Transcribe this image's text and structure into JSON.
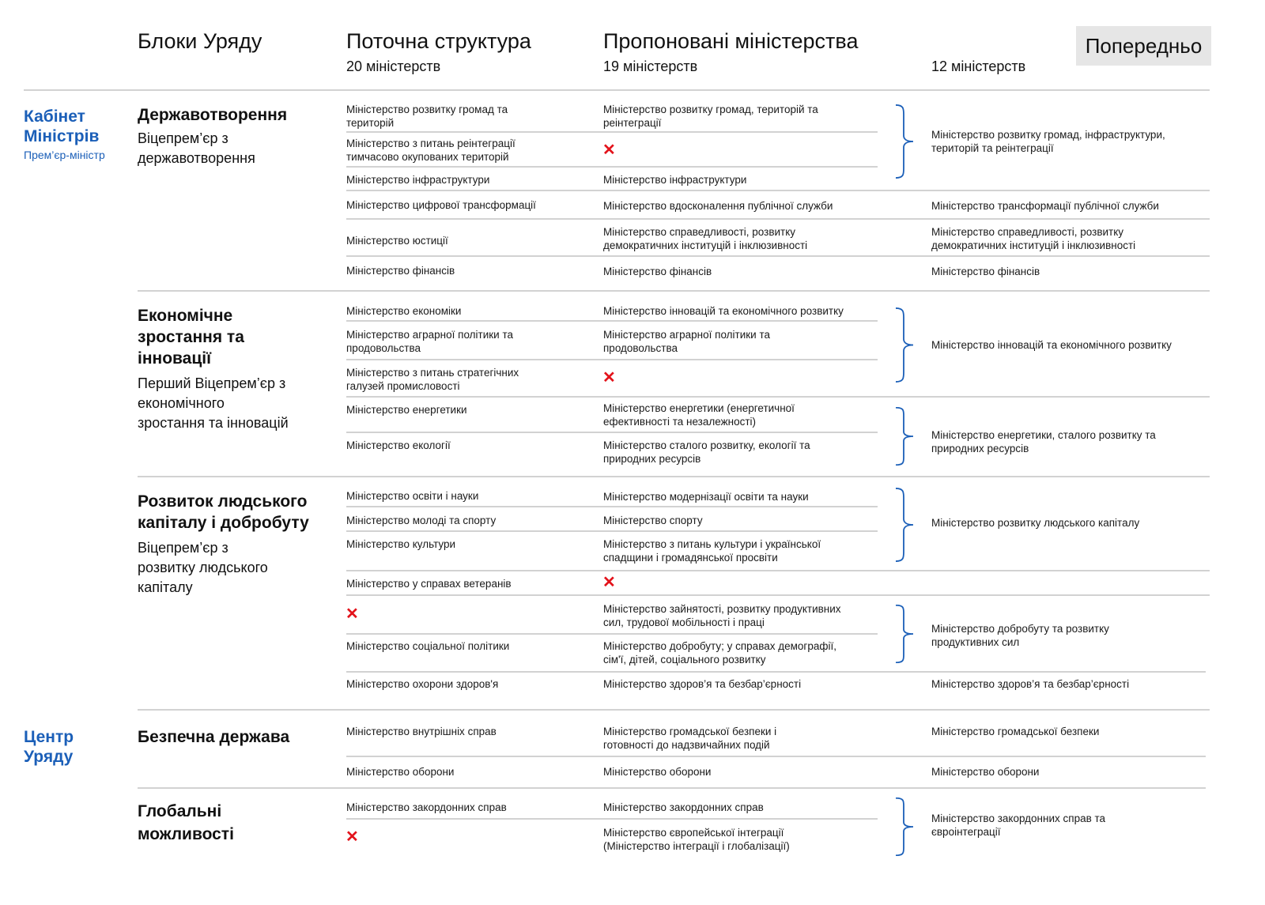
{
  "header": {
    "blocks_title": "Блоки Уряду",
    "current_title": "Поточна структура",
    "current_count": "20 міністерств",
    "proposed_title": "Пропоновані міністерства",
    "proposed_count": "19 міністерств",
    "final_count": "12 міністерств",
    "preliminary_badge": "Попередньо"
  },
  "colors": {
    "accent_blue": "#1b5fb8",
    "removed_red": "#e3131b",
    "divider": "#d2d2d2",
    "badge_bg": "#e6e6e6"
  },
  "icons": {
    "removed": "red-x-icon",
    "group": "curly-brace-icon"
  },
  "groups": [
    {
      "title": "Кабінет\nМіністрів",
      "subtitle": "Прем’єр-міністр"
    },
    {
      "title": "Центр\nУряду"
    }
  ],
  "blocks": [
    {
      "title": "Державотворення",
      "subtitle": "Віцепрем’єр з\nдержавотворення"
    },
    {
      "title": "Економічне\nзростання та\nінновації",
      "subtitle": "Перший Віцепрем’єр з\nекономічного\nзростання та інновацій"
    },
    {
      "title": "Розвиток людського\nкапіталу і добробуту",
      "subtitle": "Віцепрем’єр з\nрозвитку людського\nкапіталу"
    },
    {
      "title": "Безпечна держава"
    },
    {
      "title": "Глобальні\nможливості"
    }
  ],
  "current": [
    "Міністерство розвитку громад та\nтериторій",
    "Міністерство з питань реінтеграції\nтимчасово окупованих територій",
    "Міністерство інфраструктури",
    "Міністерство цифрової трансформації",
    "Міністерство юстиції",
    "Міністерство фінансів",
    "Міністерство економіки",
    "Міністерство аграрної політики та\nпродовольства",
    "Міністерство з питань стратегічних\nгалузей промисловості",
    "Міністерство енергетики",
    "Міністерство екології",
    "Міністерство освіти і науки",
    "Міністерство молоді та спорту",
    "Міністерство культури",
    "Міністерство у справах ветеранів",
    "Міністерство соціальної політики",
    "Міністерство охорони здоров'я",
    "Міністерство внутрішніх справ",
    "Міністерство оборони",
    "Міністерство закордонних справ"
  ],
  "proposed": [
    "Міністерство розвитку громад, територій та\nреінтеграції",
    "Міністерство інфраструктури",
    "Міністерство вдосконалення публічної служби",
    "Міністерство справедливості, розвитку\nдемократичних інституцій і інклюзивності",
    "Міністерство фінансів",
    "Міністерство інновацій та економічного розвитку",
    "Міністерство аграрної політики та\nпродовольства",
    "Міністерство енергетики (енергетичної\nефективності та незалежності)",
    "Міністерство сталого розвитку, екології та\nприродних ресурсів",
    "Міністерство модернізації освіти та науки",
    "Міністерство спорту",
    "Міністерство з питань культури і української\nспадщини і громадянської просвіти",
    "Міністерство зайнятості, розвитку продуктивних\nсил, трудової мобільності і праці",
    "Міністерство добробуту; у справах демографії,\nсім'ї, дітей, соціального розвитку",
    "Міністерство здоров’я та безбар’єрності",
    "Міністерство громадської безпеки і\nготовності до надзвичайних подій",
    "Міністерство оборони",
    "Міністерство закордонних справ",
    "Міністерство європейської інтеграції\n(Міністерство інтеграції і глобалізації)"
  ],
  "final": [
    "Міністерство розвитку громад, інфраструктури,\nтериторій та реінтеграції",
    "Міністерство трансформації публічної служби",
    "Міністерство справедливості, розвитку\nдемократичних інституцій і інклюзивності",
    "Міністерство фінансів",
    "Міністерство інновацій та економічного розвитку",
    "Міністерство енергетики, сталого розвитку та\nприродних ресурсів",
    "Міністерство розвитку людського капіталу",
    "Міністерство добробуту та розвитку\nпродуктивних сил",
    "Міністерство здоров’я та безбар’єрності",
    "Міністерство громадської безпеки",
    "Міністерство оборони",
    "Міністерство закордонних справ та\nєвроінтеграції"
  ]
}
